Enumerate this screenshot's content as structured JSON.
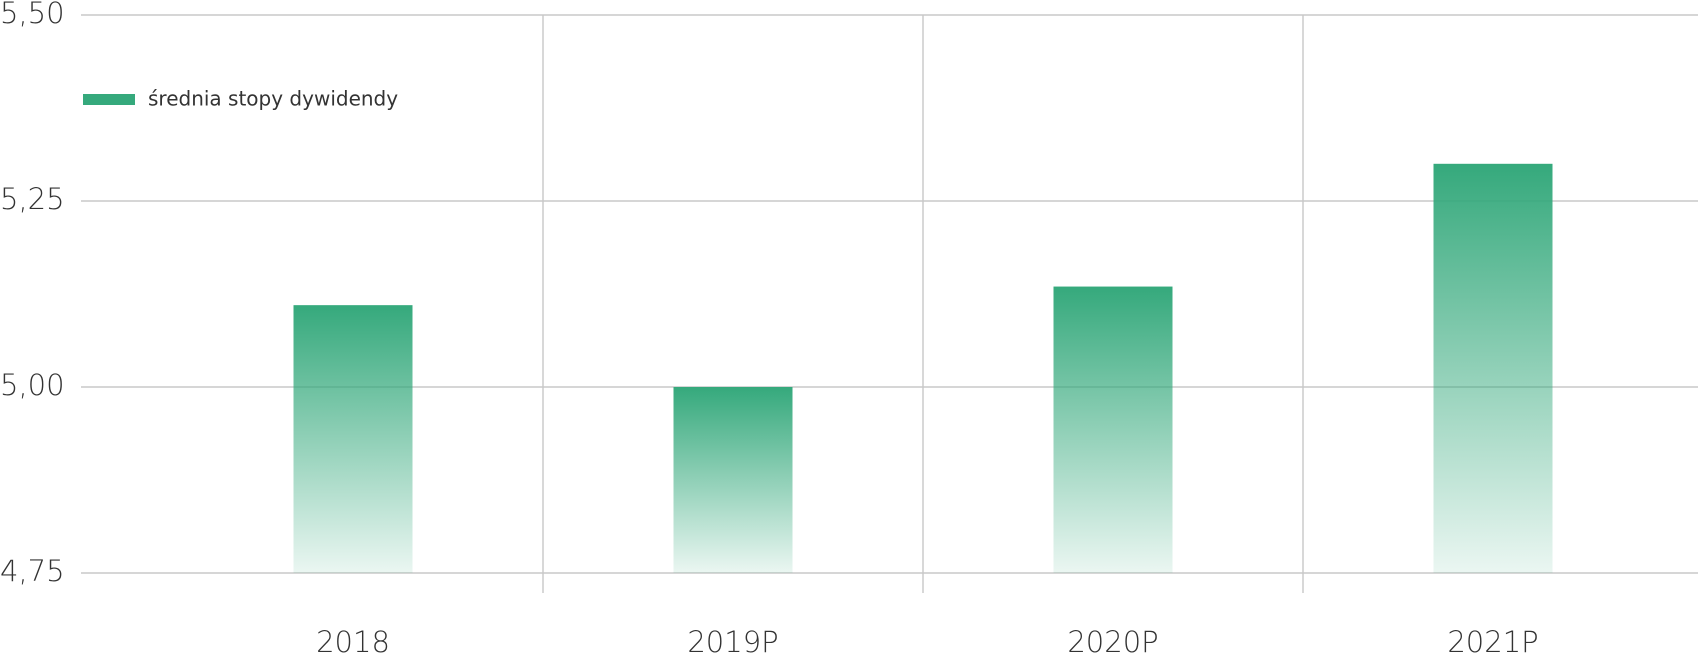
{
  "chart_data": {
    "type": "bar",
    "categories": [
      "2018",
      "2019P",
      "2020P",
      "2021P"
    ],
    "series": [
      {
        "name": "średnia stopy dywidendy",
        "color": "#35a97c",
        "values": [
          5.11,
          5.0,
          5.135,
          5.3
        ]
      }
    ],
    "ylim": [
      4.75,
      5.5
    ],
    "yticks": [
      {
        "value": 4.75,
        "label": "4,75"
      },
      {
        "value": 5.0,
        "label": "5,00"
      },
      {
        "value": 5.25,
        "label": "5,25"
      },
      {
        "value": 5.5,
        "label": "5,50"
      }
    ],
    "grid": true,
    "legend": "top-left"
  }
}
